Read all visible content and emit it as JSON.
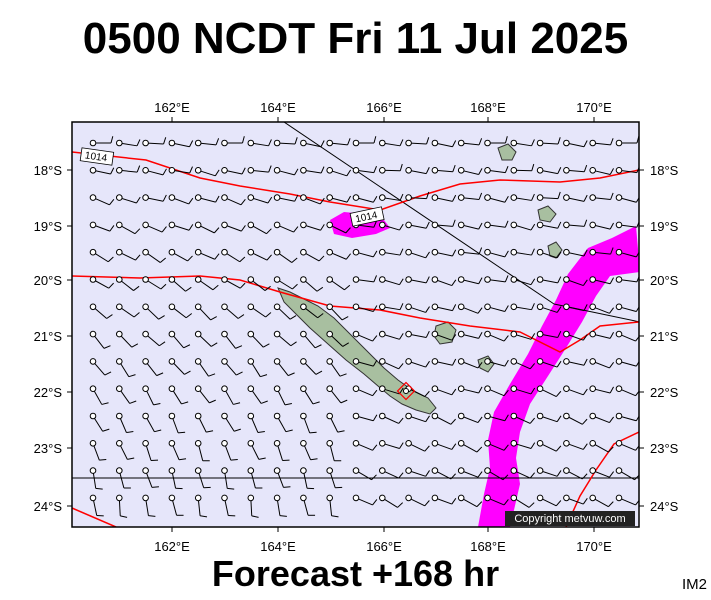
{
  "title": "0500 NCDT Fri 11 Jul 2025",
  "footer": "Forecast +168 hr",
  "image_code": "IM2",
  "copyright": "Copyright metvuw.com",
  "colors": {
    "background": "#e6e6fa",
    "isobar": "#ff0000",
    "wind_band": "#ff00ff",
    "land": "#a8bfa0",
    "barb": "#000000"
  },
  "axes": {
    "lon_labels": [
      "162°E",
      "164°E",
      "166°E",
      "168°E",
      "170°E"
    ],
    "lat_labels": [
      "18°S",
      "19°S",
      "20°S",
      "21°S",
      "22°S",
      "23°S",
      "24°S"
    ]
  },
  "isobar_labels": [
    "1014",
    "1014"
  ],
  "map": {
    "lon_range": [
      160.0,
      171.0
    ],
    "lat_range": [
      -24.3,
      -17.0
    ],
    "barb_grid_lon_step": 0.5,
    "barb_grid_lat_step": 0.5,
    "marker_location": {
      "lon": 166.45,
      "lat": -22.05
    }
  }
}
